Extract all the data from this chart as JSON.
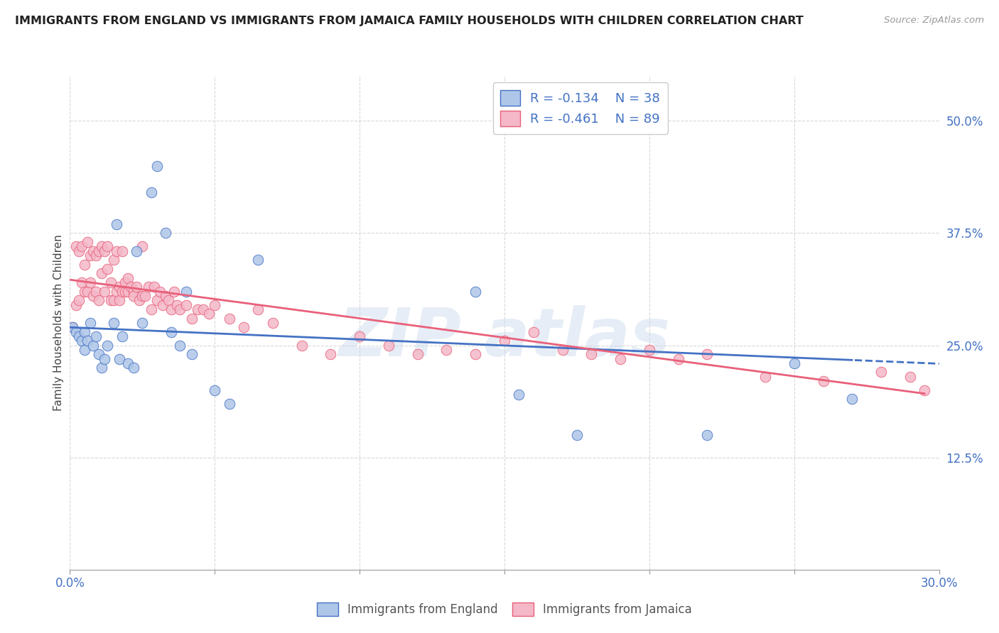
{
  "title": "IMMIGRANTS FROM ENGLAND VS IMMIGRANTS FROM JAMAICA FAMILY HOUSEHOLDS WITH CHILDREN CORRELATION CHART",
  "source": "Source: ZipAtlas.com",
  "ylabel": "Family Households with Children",
  "xlim": [
    0.0,
    0.3
  ],
  "ylim": [
    0.0,
    0.55
  ],
  "ytick_labels_right": [
    "50.0%",
    "37.5%",
    "25.0%",
    "12.5%"
  ],
  "ytick_positions_right": [
    0.5,
    0.375,
    0.25,
    0.125
  ],
  "england_color": "#aec6e8",
  "england_line_color": "#4472c4",
  "jamaica_color": "#f4b8c8",
  "jamaica_line_color": "#e8607a",
  "england_R": "-0.134",
  "england_N": "38",
  "jamaica_R": "-0.461",
  "jamaica_N": "89",
  "legend_label_england": "Immigrants from England",
  "legend_label_jamaica": "Immigrants from Jamaica",
  "england_x": [
    0.001,
    0.002,
    0.003,
    0.004,
    0.005,
    0.005,
    0.006,
    0.007,
    0.008,
    0.009,
    0.01,
    0.011,
    0.012,
    0.013,
    0.015,
    0.016,
    0.017,
    0.018,
    0.02,
    0.022,
    0.023,
    0.025,
    0.028,
    0.03,
    0.033,
    0.035,
    0.038,
    0.04,
    0.042,
    0.05,
    0.055,
    0.065,
    0.14,
    0.155,
    0.175,
    0.22,
    0.25,
    0.27
  ],
  "england_y": [
    0.27,
    0.265,
    0.26,
    0.255,
    0.265,
    0.245,
    0.255,
    0.275,
    0.25,
    0.26,
    0.24,
    0.225,
    0.235,
    0.25,
    0.275,
    0.385,
    0.235,
    0.26,
    0.23,
    0.225,
    0.355,
    0.275,
    0.42,
    0.45,
    0.375,
    0.265,
    0.25,
    0.31,
    0.24,
    0.2,
    0.185,
    0.345,
    0.31,
    0.195,
    0.15,
    0.15,
    0.23,
    0.19
  ],
  "jamaica_x": [
    0.001,
    0.002,
    0.002,
    0.003,
    0.003,
    0.004,
    0.004,
    0.005,
    0.005,
    0.006,
    0.006,
    0.007,
    0.007,
    0.008,
    0.008,
    0.009,
    0.009,
    0.01,
    0.01,
    0.011,
    0.011,
    0.012,
    0.012,
    0.013,
    0.013,
    0.014,
    0.014,
    0.015,
    0.015,
    0.016,
    0.016,
    0.017,
    0.017,
    0.018,
    0.018,
    0.019,
    0.019,
    0.02,
    0.02,
    0.021,
    0.022,
    0.022,
    0.023,
    0.024,
    0.025,
    0.025,
    0.026,
    0.027,
    0.028,
    0.029,
    0.03,
    0.031,
    0.032,
    0.033,
    0.034,
    0.035,
    0.036,
    0.037,
    0.038,
    0.04,
    0.042,
    0.044,
    0.046,
    0.048,
    0.05,
    0.055,
    0.06,
    0.065,
    0.07,
    0.08,
    0.09,
    0.1,
    0.11,
    0.12,
    0.13,
    0.14,
    0.15,
    0.16,
    0.17,
    0.18,
    0.19,
    0.2,
    0.21,
    0.22,
    0.24,
    0.26,
    0.28,
    0.29,
    0.295
  ],
  "jamaica_y": [
    0.27,
    0.36,
    0.295,
    0.355,
    0.3,
    0.32,
    0.36,
    0.31,
    0.34,
    0.31,
    0.365,
    0.32,
    0.35,
    0.305,
    0.355,
    0.31,
    0.35,
    0.3,
    0.355,
    0.33,
    0.36,
    0.31,
    0.355,
    0.335,
    0.36,
    0.3,
    0.32,
    0.3,
    0.345,
    0.31,
    0.355,
    0.3,
    0.315,
    0.31,
    0.355,
    0.31,
    0.32,
    0.31,
    0.325,
    0.315,
    0.31,
    0.305,
    0.315,
    0.3,
    0.305,
    0.36,
    0.305,
    0.315,
    0.29,
    0.315,
    0.3,
    0.31,
    0.295,
    0.305,
    0.3,
    0.29,
    0.31,
    0.295,
    0.29,
    0.295,
    0.28,
    0.29,
    0.29,
    0.285,
    0.295,
    0.28,
    0.27,
    0.29,
    0.275,
    0.25,
    0.24,
    0.26,
    0.25,
    0.24,
    0.245,
    0.24,
    0.255,
    0.265,
    0.245,
    0.24,
    0.235,
    0.245,
    0.235,
    0.24,
    0.215,
    0.21,
    0.22,
    0.215,
    0.2
  ],
  "background_color": "#ffffff",
  "grid_color": "#d8d8d8",
  "watermark_text": "ZIP atlas",
  "watermark_color": "#c8d8ec",
  "watermark_alpha": 0.45,
  "eng_intercept": 0.27,
  "eng_slope": -0.135,
  "jam_intercept": 0.323,
  "jam_slope": -0.43
}
